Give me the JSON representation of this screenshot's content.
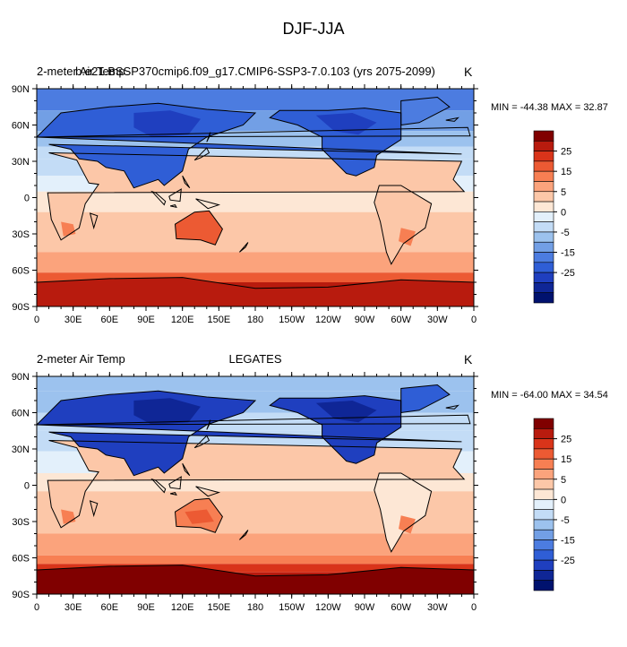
{
  "title": "DJF-JJA",
  "panels": [
    {
      "left_label": "2-meter Air Temp",
      "center_label": "b.e21.BSSP370cmip6.f09_g17.CMIP6-SSP3-7.0.103 (yrs 2075-2099)",
      "units": "K",
      "minmax": "MIN = -44.38 MAX =  32.87"
    },
    {
      "left_label": "2-meter Air Temp",
      "center_label": "LEGATES",
      "units": "K",
      "minmax": "MIN = -64.00 MAX =  34.54"
    }
  ],
  "x_ticks": [
    "0",
    "30E",
    "60E",
    "90E",
    "120E",
    "150E",
    "180",
    "150W",
    "120W",
    "90W",
    "60W",
    "30W",
    "0"
  ],
  "y_ticks": [
    "90N",
    "60N",
    "30N",
    "0",
    "30S",
    "60S",
    "90S"
  ],
  "colorbar": {
    "tick_labels": [
      "25",
      "15",
      "5",
      "0",
      "-5",
      "-15",
      "-25"
    ],
    "colors": [
      "#800000",
      "#b81b0e",
      "#d9341a",
      "#ec5a33",
      "#f77f53",
      "#fba37c",
      "#fcc7a8",
      "#fde7d5",
      "#e3f0fb",
      "#c3dcf6",
      "#9cc2ee",
      "#729fe5",
      "#4c7ce0",
      "#2f5ed6",
      "#1f3fbf",
      "#0f2696",
      "#00126e"
    ]
  }
}
